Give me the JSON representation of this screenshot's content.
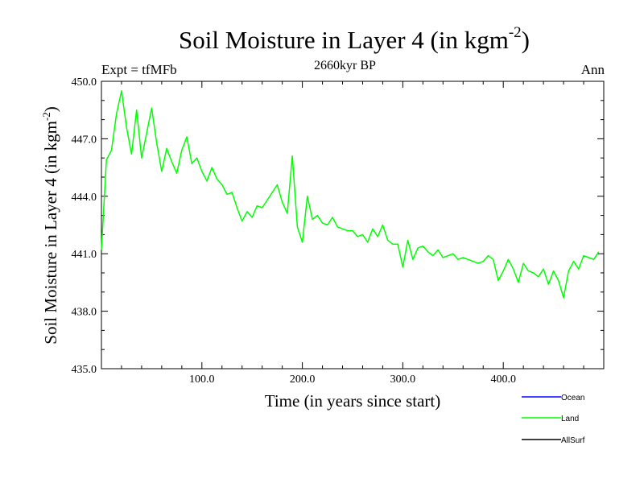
{
  "chart_data": {
    "type": "line",
    "title": "Soil Moisture in Layer 4 (in kgm",
    "title_exponent": "-2",
    "title_suffix": ")",
    "subtitle": "2660kyr BP",
    "left_label": "Expt = tfMFb",
    "right_label": "Ann",
    "xlabel": "Time (in years since start)",
    "ylabel": "Soil Moisture in Layer 4 (in kgm",
    "ylabel_exponent": "-2",
    "ylabel_suffix": ")",
    "xlim": [
      0,
      500
    ],
    "ylim": [
      435,
      450
    ],
    "x_ticks": [
      100,
      200,
      300,
      400
    ],
    "x_tick_labels": [
      "100.0",
      "200.0",
      "300.0",
      "400.0"
    ],
    "y_ticks": [
      435,
      438,
      441,
      444,
      447,
      450
    ],
    "y_tick_labels": [
      "435.0",
      "438.0",
      "441.0",
      "444.0",
      "447.0",
      "450.0"
    ],
    "legend": [
      {
        "name": "Ocean",
        "color": "#0000ff"
      },
      {
        "name": "Land",
        "color": "#00ff00"
      },
      {
        "name": "AllSurf",
        "color": "#000000"
      }
    ],
    "series": [
      {
        "name": "Land",
        "color": "#00ff00",
        "x_start": 0,
        "x_step": 5,
        "values": [
          441.2,
          445.9,
          446.4,
          448.3,
          449.5,
          447.6,
          446.2,
          448.5,
          446.0,
          447.3,
          448.6,
          446.8,
          445.3,
          446.5,
          445.8,
          445.2,
          446.4,
          447.1,
          445.7,
          446.0,
          445.3,
          444.8,
          445.5,
          444.9,
          444.6,
          444.1,
          444.2,
          443.4,
          442.7,
          443.2,
          442.9,
          443.5,
          443.4,
          443.8,
          444.2,
          444.6,
          443.7,
          443.1,
          446.1,
          442.4,
          441.6,
          444.0,
          442.8,
          443.0,
          442.6,
          442.5,
          442.9,
          442.4,
          442.3,
          442.2,
          442.2,
          441.9,
          442.0,
          441.6,
          442.3,
          441.9,
          442.5,
          441.7,
          441.5,
          441.5,
          440.3,
          441.7,
          440.7,
          441.3,
          441.4,
          441.1,
          440.9,
          441.2,
          440.8,
          440.9,
          441.0,
          440.7,
          440.8,
          440.7,
          440.6,
          440.5,
          440.6,
          440.9,
          440.7,
          439.6,
          440.1,
          440.7,
          440.2,
          439.5,
          440.5,
          440.1,
          440.0,
          439.8,
          440.2,
          439.4,
          440.1,
          439.6,
          438.7,
          440.1,
          440.6,
          440.2,
          440.9,
          440.8,
          440.7,
          441.1
        ]
      },
      {
        "name": "Ocean",
        "color": "#0000ff",
        "values": []
      },
      {
        "name": "AllSurf",
        "color": "#000000",
        "values": []
      }
    ]
  }
}
